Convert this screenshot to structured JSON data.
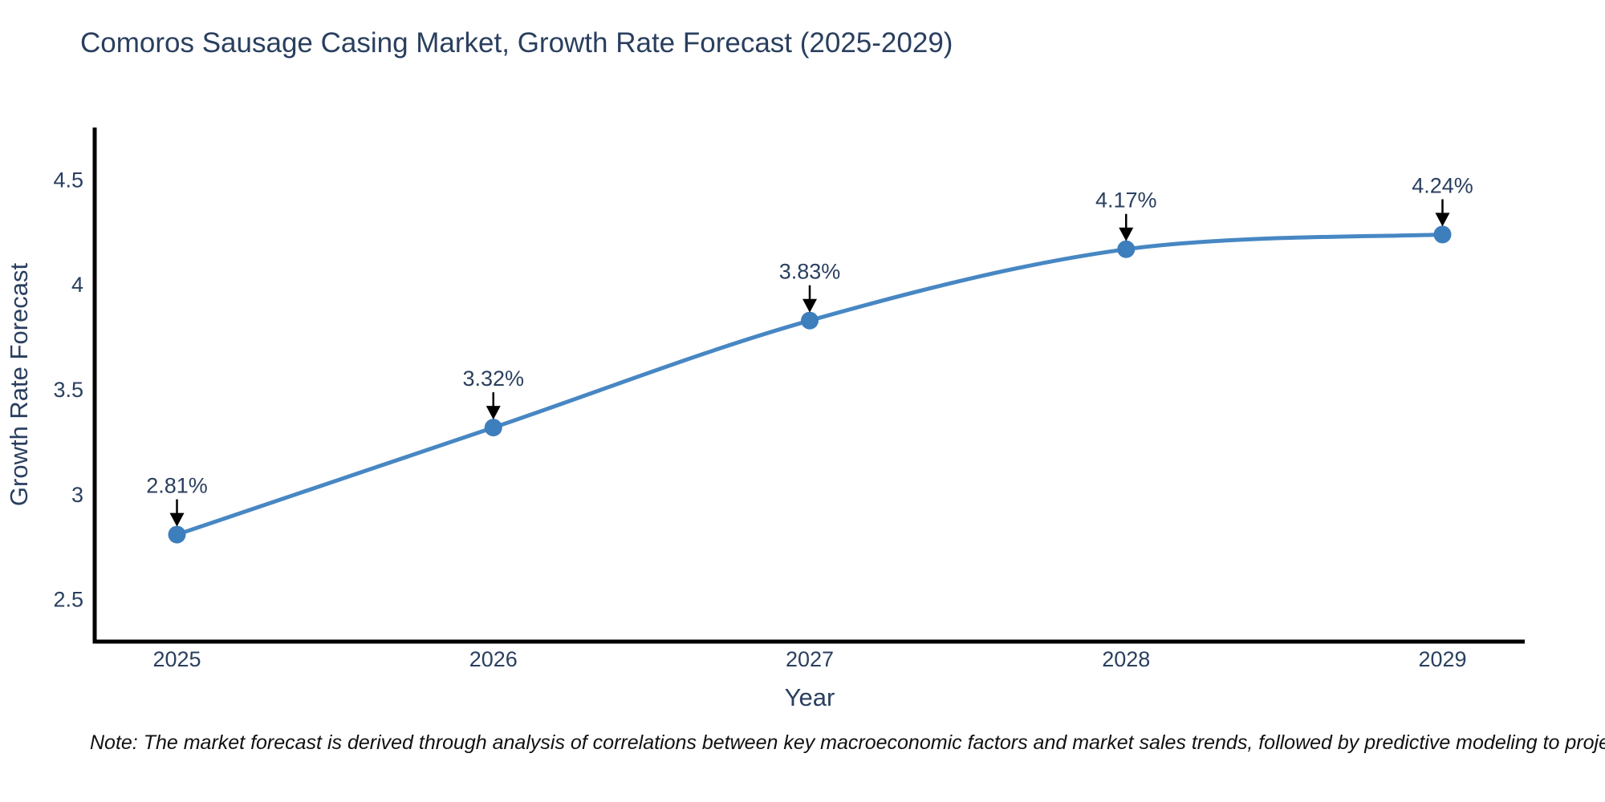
{
  "chart_data": {
    "type": "line",
    "title": "Comoros Sausage Casing Market, Growth Rate Forecast (2025-2029)",
    "xlabel": "Year",
    "ylabel": "Growth Rate Forecast",
    "x": [
      2025,
      2026,
      2027,
      2028,
      2029
    ],
    "series": [
      {
        "name": "Growth Rate Forecast",
        "values": [
          2.81,
          3.32,
          3.83,
          4.17,
          4.24
        ]
      }
    ],
    "point_labels": [
      "2.81%",
      "3.32%",
      "3.83%",
      "4.17%",
      "4.24%"
    ],
    "x_ticks": [
      "2025",
      "2026",
      "2027",
      "2028",
      "2029"
    ],
    "y_ticks": [
      2.5,
      3,
      3.5,
      4,
      4.5
    ],
    "xlim": [
      2024.74,
      2029.26
    ],
    "ylim": [
      2.3,
      4.75
    ],
    "grid": false,
    "legend": "none",
    "line_shape": "spline",
    "line_color": "#4787c3",
    "marker_color": "#3d7ebd",
    "axis_color": "#000000",
    "text_color": "#2a3f5f",
    "arrow_color": "#000000"
  },
  "note": "Note: The market forecast is derived through analysis of correlations between key macroeconomic factors and market sales trends, followed by predictive modeling to project future sales"
}
